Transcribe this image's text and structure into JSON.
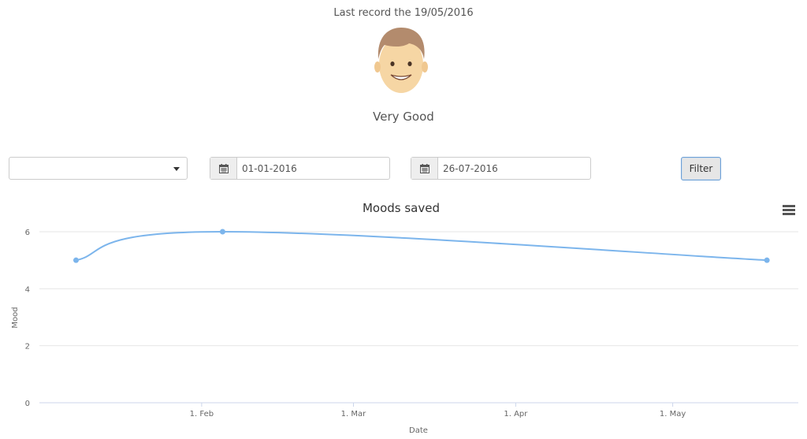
{
  "header": {
    "last_record": "Last record the 19/05/2016",
    "mood_label": "Very Good"
  },
  "filters": {
    "select_value": "",
    "start_date": "01-01-2016",
    "end_date": "26-07-2016",
    "filter_label": "Filter"
  },
  "icons": {
    "avatar": "smiling-face-icon",
    "calendar": "calendar-icon",
    "menu": "hamburger-menu-icon",
    "caret": "caret-down-icon"
  },
  "colors": {
    "series": "#7cb5ec",
    "grid": "#e6e6e6"
  },
  "chart_data": {
    "type": "line",
    "title": "Moods saved",
    "xlabel": "Date",
    "ylabel": "Mood",
    "ylim": [
      0,
      6
    ],
    "yticks": [
      "0",
      "2",
      "4",
      "6"
    ],
    "xticks": [
      "1. Feb",
      "1. Mar",
      "1. Apr",
      "1. May"
    ],
    "grid": true,
    "legend": "none",
    "series": [
      {
        "x": [
          "2016-01-08",
          "2016-02-05",
          "2016-05-19"
        ],
        "values": [
          5,
          6,
          5
        ]
      }
    ]
  }
}
